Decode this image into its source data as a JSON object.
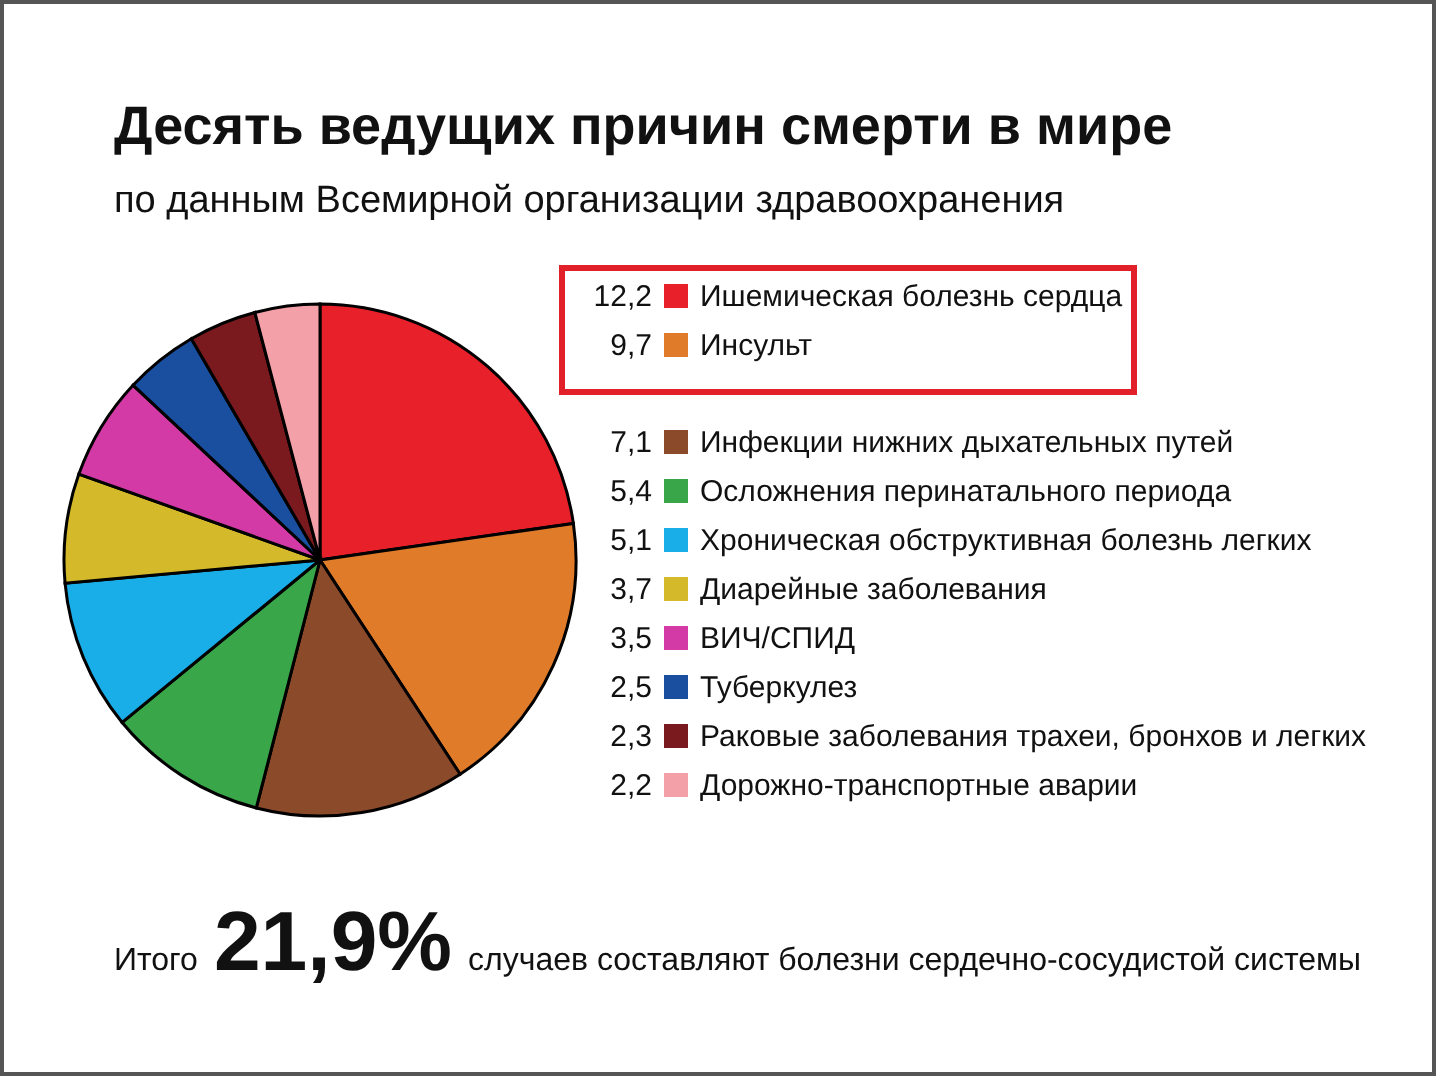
{
  "chart_data": {
    "type": "pie",
    "title": "Десять ведущих причин смерти в мире",
    "subtitle": "по данным Всемирной организации здравоохранения",
    "categories": [
      "Ишемическая болезнь сердца",
      "Инсульт",
      "Инфекции нижних дыхательных путей",
      "Осложнения перинатального периода",
      "Хроническая обструктивная болезнь легких",
      "Диарейные заболевания",
      "ВИЧ/СПИД",
      "Туберкулез",
      "Раковые заболевания трахеи, бронхов и легких",
      "Дорожно-транспортные аварии"
    ],
    "values": [
      12.2,
      9.7,
      7.1,
      5.4,
      5.1,
      3.7,
      3.5,
      2.5,
      2.3,
      2.2
    ],
    "value_labels": [
      "12,2",
      "9,7",
      "7,1",
      "5,4",
      "5,1",
      "3,7",
      "3,5",
      "2,5",
      "2,3",
      "2,2"
    ],
    "colors": [
      "#e8202a",
      "#e07b2a",
      "#8b4a2a",
      "#3aa64a",
      "#19aee8",
      "#d4b92a",
      "#d33aa6",
      "#1a4fa0",
      "#7a1a1e",
      "#f4a0a8"
    ],
    "legend": "right",
    "annotations": [
      "Итого",
      "21,9%",
      "случаев составляют болезни сердечно-сосудистой системы"
    ]
  }
}
